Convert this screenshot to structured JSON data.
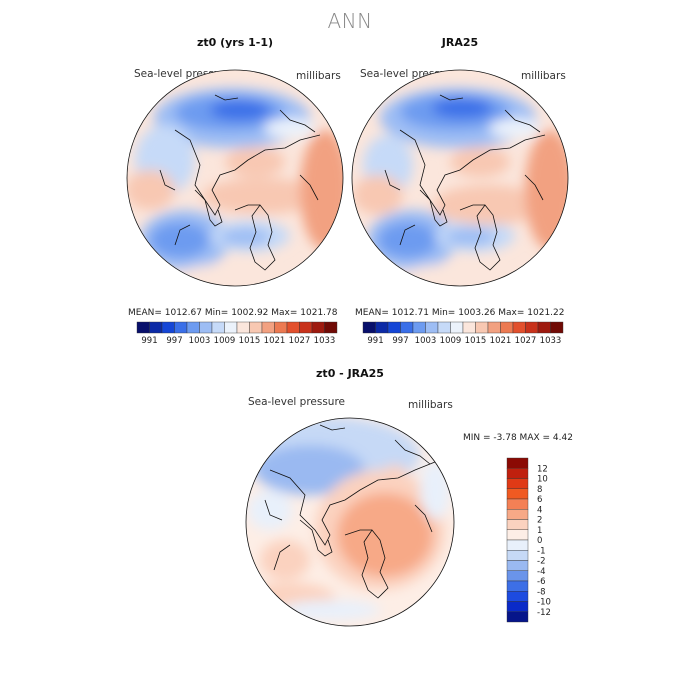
{
  "figure": {
    "title": "ANN"
  },
  "panels": {
    "top_left": {
      "title": "zt0 (yrs 1-1)",
      "variable": "Sea-level pressure",
      "units": "millibars",
      "stats": "MEAN= 1012.67   Min= 1002.92   Max= 1021.78",
      "mean": 1012.67,
      "min": 1002.92,
      "max": 1021.78
    },
    "top_right": {
      "title": "JRA25",
      "variable": "Sea-level pressure",
      "units": "millibars",
      "stats": "MEAN= 1012.71   Min= 1003.26   Max= 1021.22",
      "mean": 1012.71,
      "min": 1003.26,
      "max": 1021.22
    },
    "bottom": {
      "title": "zt0 - JRA25",
      "variable": "Sea-level pressure",
      "units": "millibars",
      "stats": "MIN =   -3.78 MAX =    4.42",
      "min": -3.78,
      "max": 4.42
    }
  },
  "colorbar_abs": {
    "tick_labels": [
      "991",
      "997",
      "1003",
      "1009",
      "1015",
      "1021",
      "1027",
      "1033"
    ],
    "colors": [
      "#08106b",
      "#0c2aa6",
      "#1546d6",
      "#3a6fe8",
      "#6d9bf0",
      "#9dbdf4",
      "#c6daf8",
      "#ebf2fb",
      "#fbe6dc",
      "#f8c8b2",
      "#f2a181",
      "#ec7a52",
      "#e2502d",
      "#c8321b",
      "#9e1a0f",
      "#700a05"
    ]
  },
  "colorbar_diff": {
    "tick_labels": [
      "12",
      "10",
      "8",
      "6",
      "4",
      "2",
      "1",
      "0",
      "-1",
      "-2",
      "-4",
      "-6",
      "-8",
      "-10",
      "-12"
    ],
    "colors": [
      "#8b0a04",
      "#c0200e",
      "#e03a16",
      "#f05a22",
      "#f48055",
      "#f7a987",
      "#fbd2bf",
      "#fdeee6",
      "#e8f0fb",
      "#c6d9f6",
      "#9ab9f1",
      "#6a94ea",
      "#3d6fe6",
      "#1d4be0",
      "#0a2ac8",
      "#06158a"
    ]
  },
  "chart_data": [
    {
      "type": "heatmap",
      "title": "zt0 (yrs 1-1)",
      "subtitle": "Sea-level pressure",
      "units": "millibars",
      "projection": "north polar stereographic",
      "mean": 1012.67,
      "min": 1002.92,
      "max": 1021.78
    },
    {
      "type": "heatmap",
      "title": "JRA25",
      "subtitle": "Sea-level pressure",
      "units": "millibars",
      "projection": "north polar stereographic",
      "mean": 1012.71,
      "min": 1003.26,
      "max": 1021.22
    },
    {
      "type": "heatmap",
      "title": "zt0 - JRA25",
      "subtitle": "Sea-level pressure",
      "units": "millibars",
      "projection": "north polar stereographic",
      "min": -3.78,
      "max": 4.42
    }
  ]
}
